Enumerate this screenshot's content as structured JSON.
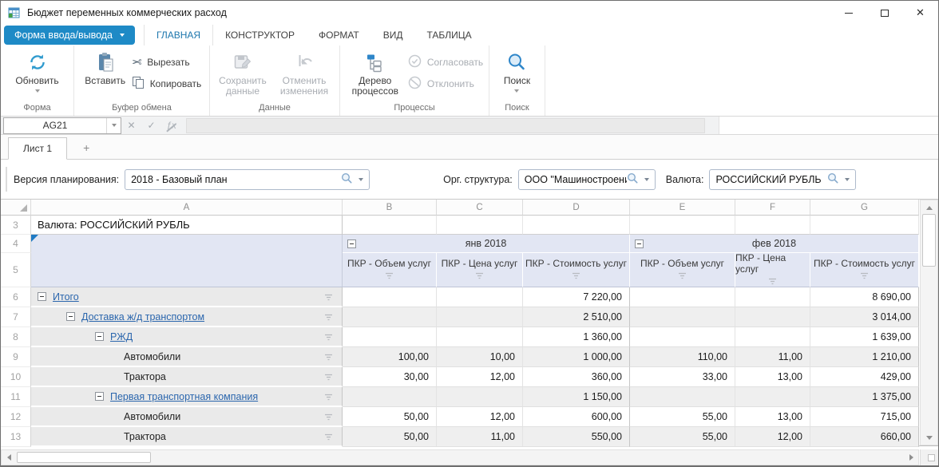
{
  "window": {
    "title": "Бюджет переменных коммерческих расход",
    "controls": [
      "minimize",
      "maximize",
      "close"
    ]
  },
  "ribbon": {
    "app_button": "Форма ввода/вывода",
    "tabs": [
      {
        "label": "ГЛАВНАЯ",
        "active": true
      },
      {
        "label": "КОНСТРУКТОР",
        "active": false
      },
      {
        "label": "ФОРМАТ",
        "active": false
      },
      {
        "label": "ВИД",
        "active": false
      },
      {
        "label": "ТАБЛИЦА",
        "active": false
      }
    ],
    "groups": [
      {
        "label": "Форма",
        "buttons": [
          {
            "label": "Обновить",
            "icon": "refresh-icon",
            "enabled": true,
            "has_dropdown": true
          }
        ]
      },
      {
        "label": "Буфер обмена",
        "buttons": [
          {
            "label": "Вставить",
            "icon": "paste-icon",
            "enabled": true
          },
          {
            "label": "Вырезать",
            "icon": "cut-icon",
            "enabled": true
          },
          {
            "label": "Копировать",
            "icon": "copy-icon",
            "enabled": true
          }
        ]
      },
      {
        "label": "Данные",
        "buttons": [
          {
            "label": "Сохранить данные",
            "icon": "save-icon",
            "enabled": false
          },
          {
            "label": "Отменить изменения",
            "icon": "undo-icon",
            "enabled": false
          }
        ]
      },
      {
        "label": "Процессы",
        "buttons": [
          {
            "label": "Дерево процессов",
            "icon": "process-tree-icon",
            "enabled": true
          },
          {
            "label": "Согласовать",
            "icon": "approve-icon",
            "enabled": false
          },
          {
            "label": "Отклонить",
            "icon": "reject-icon",
            "enabled": false
          }
        ]
      },
      {
        "label": "Поиск",
        "buttons": [
          {
            "label": "Поиск",
            "icon": "search-icon",
            "enabled": true,
            "has_dropdown": true
          }
        ]
      }
    ]
  },
  "formula_bar": {
    "cell_ref": "AG21",
    "value": ""
  },
  "sheet_tabs": {
    "tabs": [
      "Лист 1"
    ],
    "add_label": "+"
  },
  "filters": [
    {
      "label": "Версия планирования:",
      "value": "2018 - Базовый план"
    },
    {
      "label": "Орг. структура:",
      "value": "ООО \"Машиностроение-1\""
    },
    {
      "label": "Валюта:",
      "value": "РОССИЙСКИЙ РУБЛЬ"
    }
  ],
  "grid": {
    "column_letters": [
      "A",
      "B",
      "C",
      "D",
      "E",
      "F",
      "G"
    ],
    "currency_row": {
      "number": "3",
      "text": "Валюта: РОССИЙСКИЙ РУБЛЬ"
    },
    "header_row_numbers": [
      "4",
      "5"
    ],
    "month_groups": [
      {
        "label": "янв 2018"
      },
      {
        "label": "фев 2018"
      }
    ],
    "measure_headers": [
      "ПКР - Объем услуг",
      "ПКР - Цена услуг",
      "ПКР - Стоимость услуг"
    ],
    "rows": [
      {
        "number": "6",
        "label": "Итого",
        "level": 0,
        "link": true,
        "expander": true,
        "values": [
          "",
          "",
          "7 220,00",
          "",
          "",
          "8 690,00"
        ]
      },
      {
        "number": "7",
        "label": "Доставка ж/д транспортом",
        "level": 1,
        "link": true,
        "expander": true,
        "values": [
          "",
          "",
          "2 510,00",
          "",
          "",
          "3 014,00"
        ]
      },
      {
        "number": "8",
        "label": "РЖД",
        "level": 2,
        "link": true,
        "expander": true,
        "values": [
          "",
          "",
          "1 360,00",
          "",
          "",
          "1 639,00"
        ]
      },
      {
        "number": "9",
        "label": "Автомобили",
        "level": 3,
        "link": false,
        "expander": false,
        "values": [
          "100,00",
          "10,00",
          "1 000,00",
          "110,00",
          "11,00",
          "1 210,00"
        ]
      },
      {
        "number": "10",
        "label": "Трактора",
        "level": 3,
        "link": false,
        "expander": false,
        "values": [
          "30,00",
          "12,00",
          "360,00",
          "33,00",
          "13,00",
          "429,00"
        ]
      },
      {
        "number": "11",
        "label": "Первая транспортная компания",
        "level": 2,
        "link": true,
        "expander": true,
        "values": [
          "",
          "",
          "1 150,00",
          "",
          "",
          "1 375,00"
        ]
      },
      {
        "number": "12",
        "label": "Автомобили",
        "level": 3,
        "link": false,
        "expander": false,
        "values": [
          "50,00",
          "12,00",
          "600,00",
          "55,00",
          "13,00",
          "715,00"
        ]
      },
      {
        "number": "13",
        "label": "Трактора",
        "level": 3,
        "link": false,
        "expander": false,
        "values": [
          "50,00",
          "11,00",
          "550,00",
          "55,00",
          "12,00",
          "660,00"
        ]
      }
    ]
  },
  "colors": {
    "accent_blue": "#1e8ac6",
    "active_tab_text": "#1c76ad",
    "link_blue": "#2b66ad",
    "header_band": "#e2e6f3",
    "column_a_bg": "#eaeaea",
    "alt_row_bg": "#efefef"
  }
}
